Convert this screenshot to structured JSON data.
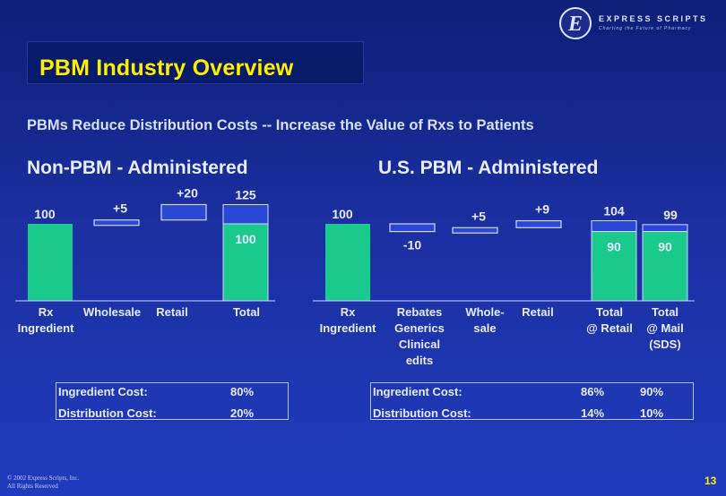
{
  "slide": {
    "title": "PBM Industry Overview",
    "subtitle": "PBMs Reduce Distribution Costs -- Increase the Value of Rxs to Patients",
    "copyright_line1": "© 2002 Express Scripts, Inc.",
    "copyright_line2": "All Rights Reserved",
    "page_number": "13"
  },
  "logo": {
    "name": "EXPRESS SCRIPTS",
    "tagline": "Charting the Future of Pharmacy",
    "icon": "express-scripts-e-logo-icon"
  },
  "colors": {
    "green_bar": "#1ac98c",
    "blue_bar": "#2a47d6",
    "bar_outline": "#d0d8ff",
    "title_yellow": "#ffee00"
  },
  "chart_data": [
    {
      "type": "bar",
      "title": "Non-PBM - Administered",
      "categories": [
        "Rx Ingredient",
        "Wholesale",
        "Retail",
        "Total"
      ],
      "category_lines": [
        [
          "Rx",
          "Ingredient"
        ],
        [
          "Wholesale"
        ],
        [
          "Retail"
        ],
        [
          "Total"
        ]
      ],
      "bars": [
        {
          "category": "Rx Ingredient",
          "kind": "base",
          "value": 100,
          "label": "100"
        },
        {
          "category": "Wholesale",
          "kind": "step",
          "value": 5,
          "label": "+5"
        },
        {
          "category": "Retail",
          "kind": "step",
          "value": 20,
          "label": "+20"
        },
        {
          "category": "Total",
          "kind": "total",
          "value": 125,
          "label": "125",
          "ingredient": 100,
          "ingredient_label": "100"
        }
      ],
      "cost_table": [
        {
          "label": "Ingredient Cost:",
          "values": [
            "80%"
          ]
        },
        {
          "label": "Distribution Cost:",
          "values": [
            "20%"
          ]
        }
      ]
    },
    {
      "type": "bar",
      "title": "U.S. PBM - Administered",
      "categories": [
        "Rx Ingredient",
        "Rebates Generics Clinical edits",
        "Wholesale",
        "Retail",
        "Total @ Retail",
        "Total @ Mail (SDS)"
      ],
      "category_lines": [
        [
          "Rx",
          "Ingredient"
        ],
        [
          "Rebates",
          "Generics",
          "Clinical",
          "edits"
        ],
        [
          "Whole-",
          "sale"
        ],
        [
          "Retail"
        ],
        [
          "Total",
          "@ Retail"
        ],
        [
          "Total",
          "@ Mail",
          "(SDS)"
        ]
      ],
      "bars": [
        {
          "category": "Rx Ingredient",
          "kind": "base",
          "value": 100,
          "label": "100"
        },
        {
          "category": "Rebates Generics Clinical edits",
          "kind": "step",
          "value": -10,
          "label": "-10"
        },
        {
          "category": "Wholesale",
          "kind": "step",
          "value": 5,
          "label": "+5"
        },
        {
          "category": "Retail",
          "kind": "step",
          "value": 9,
          "label": "+9"
        },
        {
          "category": "Total @ Retail",
          "kind": "total",
          "value": 104,
          "label": "104",
          "ingredient": 90,
          "ingredient_label": "90"
        },
        {
          "category": "Total @ Mail (SDS)",
          "kind": "total",
          "value": 99,
          "label": "99",
          "ingredient": 90,
          "ingredient_label": "90"
        }
      ],
      "cost_table": [
        {
          "label": "Ingredient Cost:",
          "values": [
            "86%",
            "90%"
          ]
        },
        {
          "label": "Distribution Cost:",
          "values": [
            "14%",
            "10%"
          ]
        }
      ]
    }
  ]
}
